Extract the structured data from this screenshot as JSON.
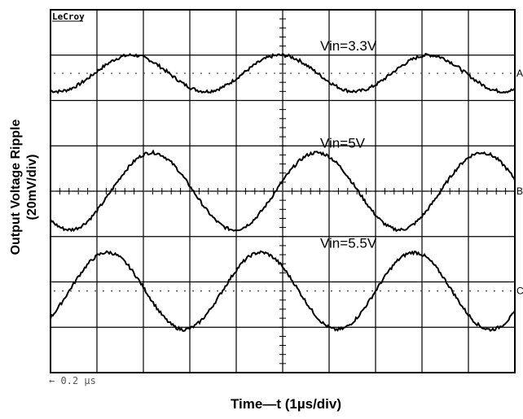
{
  "chart_data": {
    "type": "line",
    "brand": "LeCroy",
    "xlabel": "Time—t (1µs/div)",
    "ylabel_line1": "Output Voltage Ripple",
    "ylabel_line2": "(20mV/div)",
    "timebase": "← 0.2 µs",
    "grid": true,
    "divisions": {
      "x": 10,
      "y": 8
    },
    "series": [
      {
        "name": "Vin=3.3V",
        "marker": "A",
        "offset_div": 2.6,
        "amplitude_div": 0.4,
        "period_div": 3.2,
        "phase_div": 0.95
      },
      {
        "name": "Vin=5V",
        "marker": "B",
        "offset_div": 0.0,
        "amplitude_div": 0.85,
        "period_div": 3.55,
        "phase_div": 1.3
      },
      {
        "name": "Vin=5.5V",
        "marker": "C",
        "offset_div": -2.2,
        "amplitude_div": 0.85,
        "period_div": 3.3,
        "phase_div": 0.4
      }
    ]
  }
}
